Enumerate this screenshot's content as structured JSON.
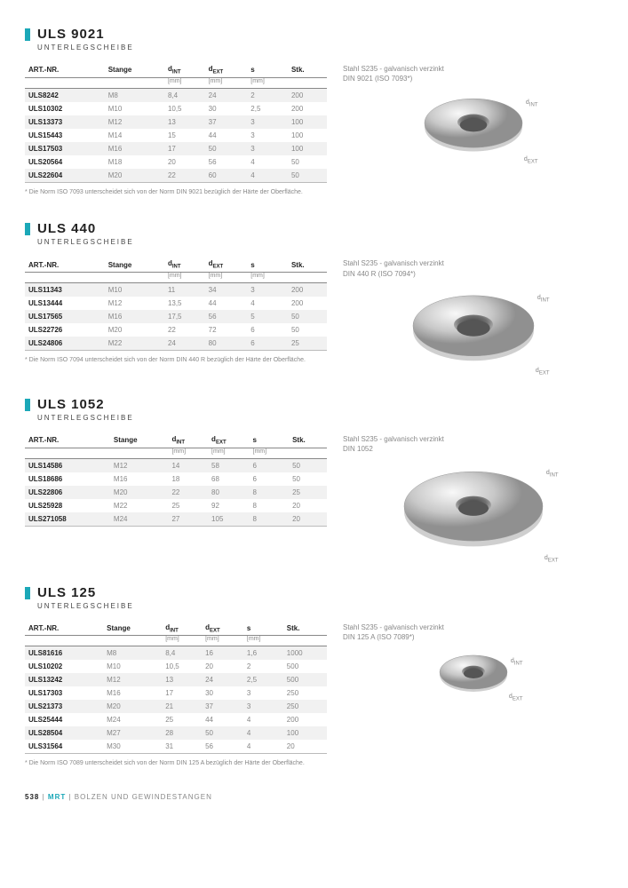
{
  "footer": {
    "page": "538",
    "div": "|",
    "brand": "MRT",
    "sep": "|",
    "cat": "BOLZEN UND GEWINDESTANGEN"
  },
  "labels": {
    "dint": "d",
    "dintSub": "INT",
    "dext": "d",
    "dextSub": "EXT"
  },
  "sections": [
    {
      "id": "s1",
      "title": "ULS 9021",
      "sub": "UNTERLEGSCHEIBE",
      "spec1": "Stahl S235 - galvanisch verzinkt",
      "spec2": "DIN 9021 (ISO 7093*)",
      "note": "* Die Norm ISO 7093 unterscheidet sich von der Norm DIN 9021 bezüglich der Härte der Oberfläche.",
      "cols": [
        "ART.-NR.",
        "Stange",
        "dINT",
        "dEXT",
        "s",
        "Stk."
      ],
      "units": [
        "",
        "",
        "[mm]",
        "[mm]",
        "[mm]",
        ""
      ],
      "rows": [
        [
          "ULS8242",
          "M8",
          "8,4",
          "24",
          "2",
          "200"
        ],
        [
          "ULS10302",
          "M10",
          "10,5",
          "30",
          "2,5",
          "200"
        ],
        [
          "ULS13373",
          "M12",
          "13",
          "37",
          "3",
          "100"
        ],
        [
          "ULS15443",
          "M14",
          "15",
          "44",
          "3",
          "100"
        ],
        [
          "ULS17503",
          "M16",
          "17",
          "50",
          "3",
          "100"
        ],
        [
          "ULS20564",
          "M18",
          "20",
          "56",
          "4",
          "50"
        ],
        [
          "ULS22604",
          "M20",
          "22",
          "60",
          "4",
          "50"
        ]
      ],
      "washerR": 55,
      "holeR": 18
    },
    {
      "id": "s2",
      "title": "ULS 440",
      "sub": "UNTERLEGSCHEIBE",
      "spec1": "Stahl S235 - galvanisch verzinkt",
      "spec2": "DIN 440 R (ISO 7094*)",
      "note": "* Die Norm ISO 7094 unterscheidet sich von der Norm DIN 440 R bezüglich der Härte der Oberfläche.",
      "cols": [
        "ART.-NR.",
        "Stange",
        "dINT",
        "dEXT",
        "s",
        "Stk."
      ],
      "units": [
        "",
        "",
        "[mm]",
        "[mm]",
        "[mm]",
        ""
      ],
      "rows": [
        [
          "ULS11343",
          "M10",
          "11",
          "34",
          "3",
          "200"
        ],
        [
          "ULS13444",
          "M12",
          "13,5",
          "44",
          "4",
          "200"
        ],
        [
          "ULS17565",
          "M16",
          "17,5",
          "56",
          "5",
          "50"
        ],
        [
          "ULS22726",
          "M20",
          "22",
          "72",
          "6",
          "50"
        ],
        [
          "ULS24806",
          "M22",
          "24",
          "80",
          "6",
          "25"
        ]
      ],
      "washerR": 68,
      "holeR": 22
    },
    {
      "id": "s3",
      "title": "ULS 1052",
      "sub": "UNTERLEGSCHEIBE",
      "spec1": "Stahl S235 - galvanisch verzinkt",
      "spec2": "DIN 1052",
      "note": "",
      "cols": [
        "ART.-NR.",
        "Stange",
        "dINT",
        "dEXT",
        "s",
        "Stk."
      ],
      "units": [
        "",
        "",
        "[mm]",
        "[mm]",
        "[mm]",
        ""
      ],
      "rows": [
        [
          "ULS14586",
          "M12",
          "14",
          "58",
          "6",
          "50"
        ],
        [
          "ULS18686",
          "M16",
          "18",
          "68",
          "6",
          "50"
        ],
        [
          "ULS22806",
          "M20",
          "22",
          "80",
          "8",
          "25"
        ],
        [
          "ULS25928",
          "M22",
          "25",
          "92",
          "8",
          "20"
        ],
        [
          "ULS271058",
          "M24",
          "27",
          "105",
          "8",
          "20"
        ]
      ],
      "washerR": 78,
      "holeR": 20
    },
    {
      "id": "s4",
      "title": "ULS 125",
      "sub": "UNTERLEGSCHEIBE",
      "spec1": "Stahl S235 - galvanisch verzinkt",
      "spec2": "DIN 125 A (ISO 7089*)",
      "note": "* Die Norm ISO 7089 unterscheidet sich von der Norm DIN 125 A bezüglich der Härte der Oberfläche.",
      "cols": [
        "ART.-NR.",
        "Stange",
        "dINT",
        "dEXT",
        "s",
        "Stk."
      ],
      "units": [
        "",
        "",
        "[mm]",
        "[mm]",
        "[mm]",
        ""
      ],
      "rows": [
        [
          "ULS81616",
          "M8",
          "8,4",
          "16",
          "1,6",
          "1000"
        ],
        [
          "ULS10202",
          "M10",
          "10,5",
          "20",
          "2",
          "500"
        ],
        [
          "ULS13242",
          "M12",
          "13",
          "24",
          "2,5",
          "500"
        ],
        [
          "ULS17303",
          "M16",
          "17",
          "30",
          "3",
          "250"
        ],
        [
          "ULS21373",
          "M20",
          "21",
          "37",
          "3",
          "250"
        ],
        [
          "ULS25444",
          "M24",
          "25",
          "44",
          "4",
          "200"
        ],
        [
          "ULS28504",
          "M27",
          "28",
          "50",
          "4",
          "100"
        ],
        [
          "ULS31564",
          "M30",
          "31",
          "56",
          "4",
          "20"
        ]
      ],
      "washerR": 38,
      "holeR": 13
    }
  ]
}
